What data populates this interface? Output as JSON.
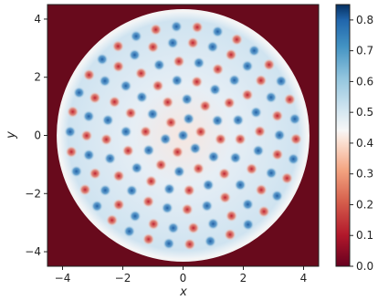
{
  "chart_data": {
    "type": "heatmap",
    "title": "",
    "xlabel": "x",
    "ylabel": "y",
    "xlim": [
      -4.5,
      4.5
    ],
    "ylim": [
      -4.5,
      4.5
    ],
    "x_ticks": [
      "−4",
      "−2",
      "0",
      "2",
      "4"
    ],
    "y_ticks": [
      "4",
      "2",
      "0",
      "−2",
      "−4"
    ],
    "colorbar": {
      "range": [
        0.0,
        0.85
      ],
      "ticks": [
        "0.8",
        "0.7",
        "0.6",
        "0.5",
        "0.4",
        "0.3",
        "0.2",
        "0.1",
        "0.0"
      ],
      "colormap": "RdBu (red = low, blue = high)"
    },
    "field": {
      "description": "circular domain with a ring of alternating red and blue spots",
      "domain_radius": 4.15,
      "outside_value": 0.0,
      "background_value": 0.55,
      "rings": [
        {
          "radius": 0.0,
          "count": 1
        },
        {
          "radius": 0.6,
          "count": 6
        },
        {
          "radius": 1.25,
          "count": 12
        },
        {
          "radius": 1.9,
          "count": 18
        },
        {
          "radius": 2.55,
          "count": 24
        },
        {
          "radius": 3.2,
          "count": 30
        },
        {
          "radius": 3.75,
          "count": 34
        }
      ]
    },
    "grid": false,
    "legend": "none"
  }
}
